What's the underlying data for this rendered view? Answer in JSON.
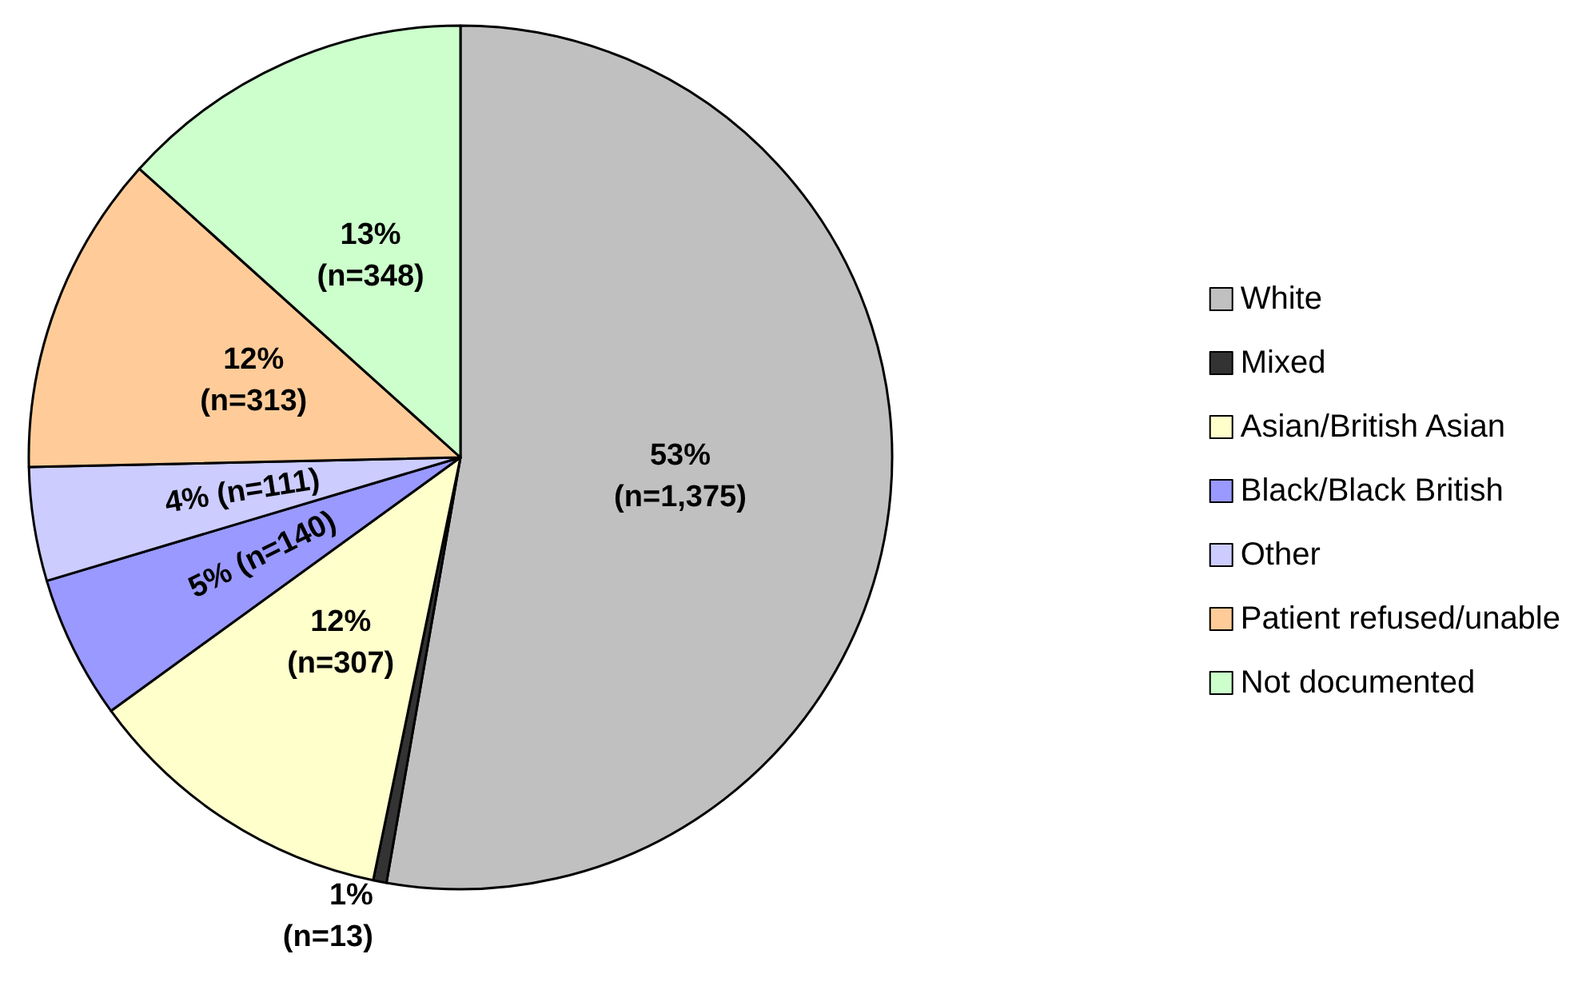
{
  "chart_data": {
    "type": "pie",
    "categories": [
      "White",
      "Mixed",
      "Asian/British Asian",
      "Black/Black British",
      "Other",
      "Patient refused/unable",
      "Not documented"
    ],
    "values": [
      1375,
      13,
      307,
      140,
      111,
      313,
      348
    ],
    "colors": [
      "#c0c0c0",
      "#333333",
      "#ffffcc",
      "#9999ff",
      "#ccccff",
      "#ffcc99",
      "#ccffcc"
    ],
    "value_labels": [
      "53%\n(n=1,375)",
      "1%\n(n=13)",
      "12%\n(n=307)",
      "5% (n=140)",
      "4% (n=111)",
      "12%\n(n=313)",
      "13%\n(n=348)"
    ],
    "legend": "right"
  }
}
